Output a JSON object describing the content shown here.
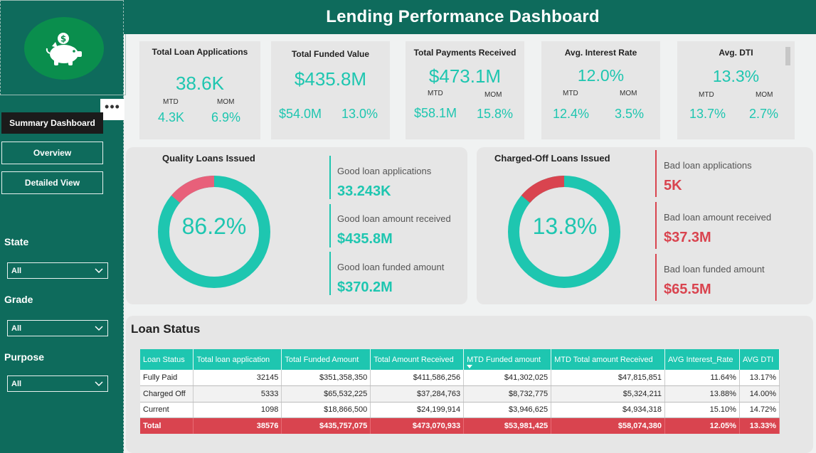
{
  "header": {
    "title": "Lending Performance Dashboard"
  },
  "sidebar": {
    "more_label": "•••",
    "nav": [
      {
        "label": "Summary Dashboard",
        "active": true
      },
      {
        "label": "Overview",
        "active": false
      },
      {
        "label": "Detailed View",
        "active": false
      }
    ],
    "filters": [
      {
        "label": "State",
        "value": "All"
      },
      {
        "label": "Grade",
        "value": "All"
      },
      {
        "label": "Purpose",
        "value": "All"
      }
    ]
  },
  "kpis": [
    {
      "title": "Total  Loan Applications",
      "value": "38.6K",
      "mtd_label": "MTD",
      "mom_label": "MOM",
      "mtd": "4.3K",
      "mom": "6.9%"
    },
    {
      "title": "Total Funded Value",
      "value": "$435.8M",
      "mtd_label": "",
      "mom_label": "",
      "mtd": "$54.0M",
      "mom": "13.0%"
    },
    {
      "title": "Total Payments Received",
      "value": "$473.1M",
      "mtd_label": "MTD",
      "mom_label": "MOM",
      "mtd": "$58.1M",
      "mom": "15.8%"
    },
    {
      "title": "Avg. Interest Rate",
      "value": "12.0%",
      "mtd_label": "MTD",
      "mom_label": "MOM",
      "mtd": "12.4%",
      "mom": "3.5%"
    },
    {
      "title": "Avg. DTI",
      "value": "13.3%",
      "mtd_label": "MTD",
      "mom_label": "MOM",
      "mtd": "13.7%",
      "mom": "2.7%"
    }
  ],
  "quality": {
    "title": "Quality Loans Issued",
    "percent_label": "86.2%",
    "percent": 0.862,
    "stats": [
      {
        "label": "Good loan applications",
        "value": "33.243K"
      },
      {
        "label": "Good loan amount received",
        "value": "$435.8M"
      },
      {
        "label": "Good loan funded amount",
        "value": "$370.2M"
      }
    ]
  },
  "charged_off": {
    "title": "Charged-Off Loans Issued",
    "percent_label": "13.8%",
    "percent": 0.138,
    "stats": [
      {
        "label": "Bad loan applications",
        "value": "5K"
      },
      {
        "label": "Bad loan amount received",
        "value": "$37.3M"
      },
      {
        "label": "Bad loan funded amount",
        "value": "$65.5M"
      }
    ]
  },
  "colors": {
    "brand": "#0e6b5c",
    "teal": "#1ec6b0",
    "good_accent": "#e8607a",
    "bad": "#d9444f",
    "panel": "#e6e6e6"
  },
  "loan_status": {
    "title": "Loan Status",
    "columns": [
      "Loan Status",
      "Total loan application",
      "Total Funded Amount",
      "Total Amount Received",
      "MTD Funded amount",
      "MTD Total amount Received",
      "AVG Interest_Rate",
      "AVG DTI"
    ],
    "sorted_column": 4,
    "rows": [
      [
        "Fully Paid",
        "32145",
        "$351,358,350",
        "$411,586,256",
        "$41,302,025",
        "$47,815,851",
        "11.64%",
        "13.17%"
      ],
      [
        "Charged Off",
        "5333",
        "$65,532,225",
        "$37,284,763",
        "$8,732,775",
        "$5,324,211",
        "13.88%",
        "14.00%"
      ],
      [
        "Current",
        "1098",
        "$18,866,500",
        "$24,199,914",
        "$3,946,625",
        "$4,934,318",
        "15.10%",
        "14.72%"
      ]
    ],
    "total": [
      "Total",
      "38576",
      "$435,757,075",
      "$473,070,933",
      "$53,981,425",
      "$58,074,380",
      "12.05%",
      "13.33%"
    ]
  }
}
